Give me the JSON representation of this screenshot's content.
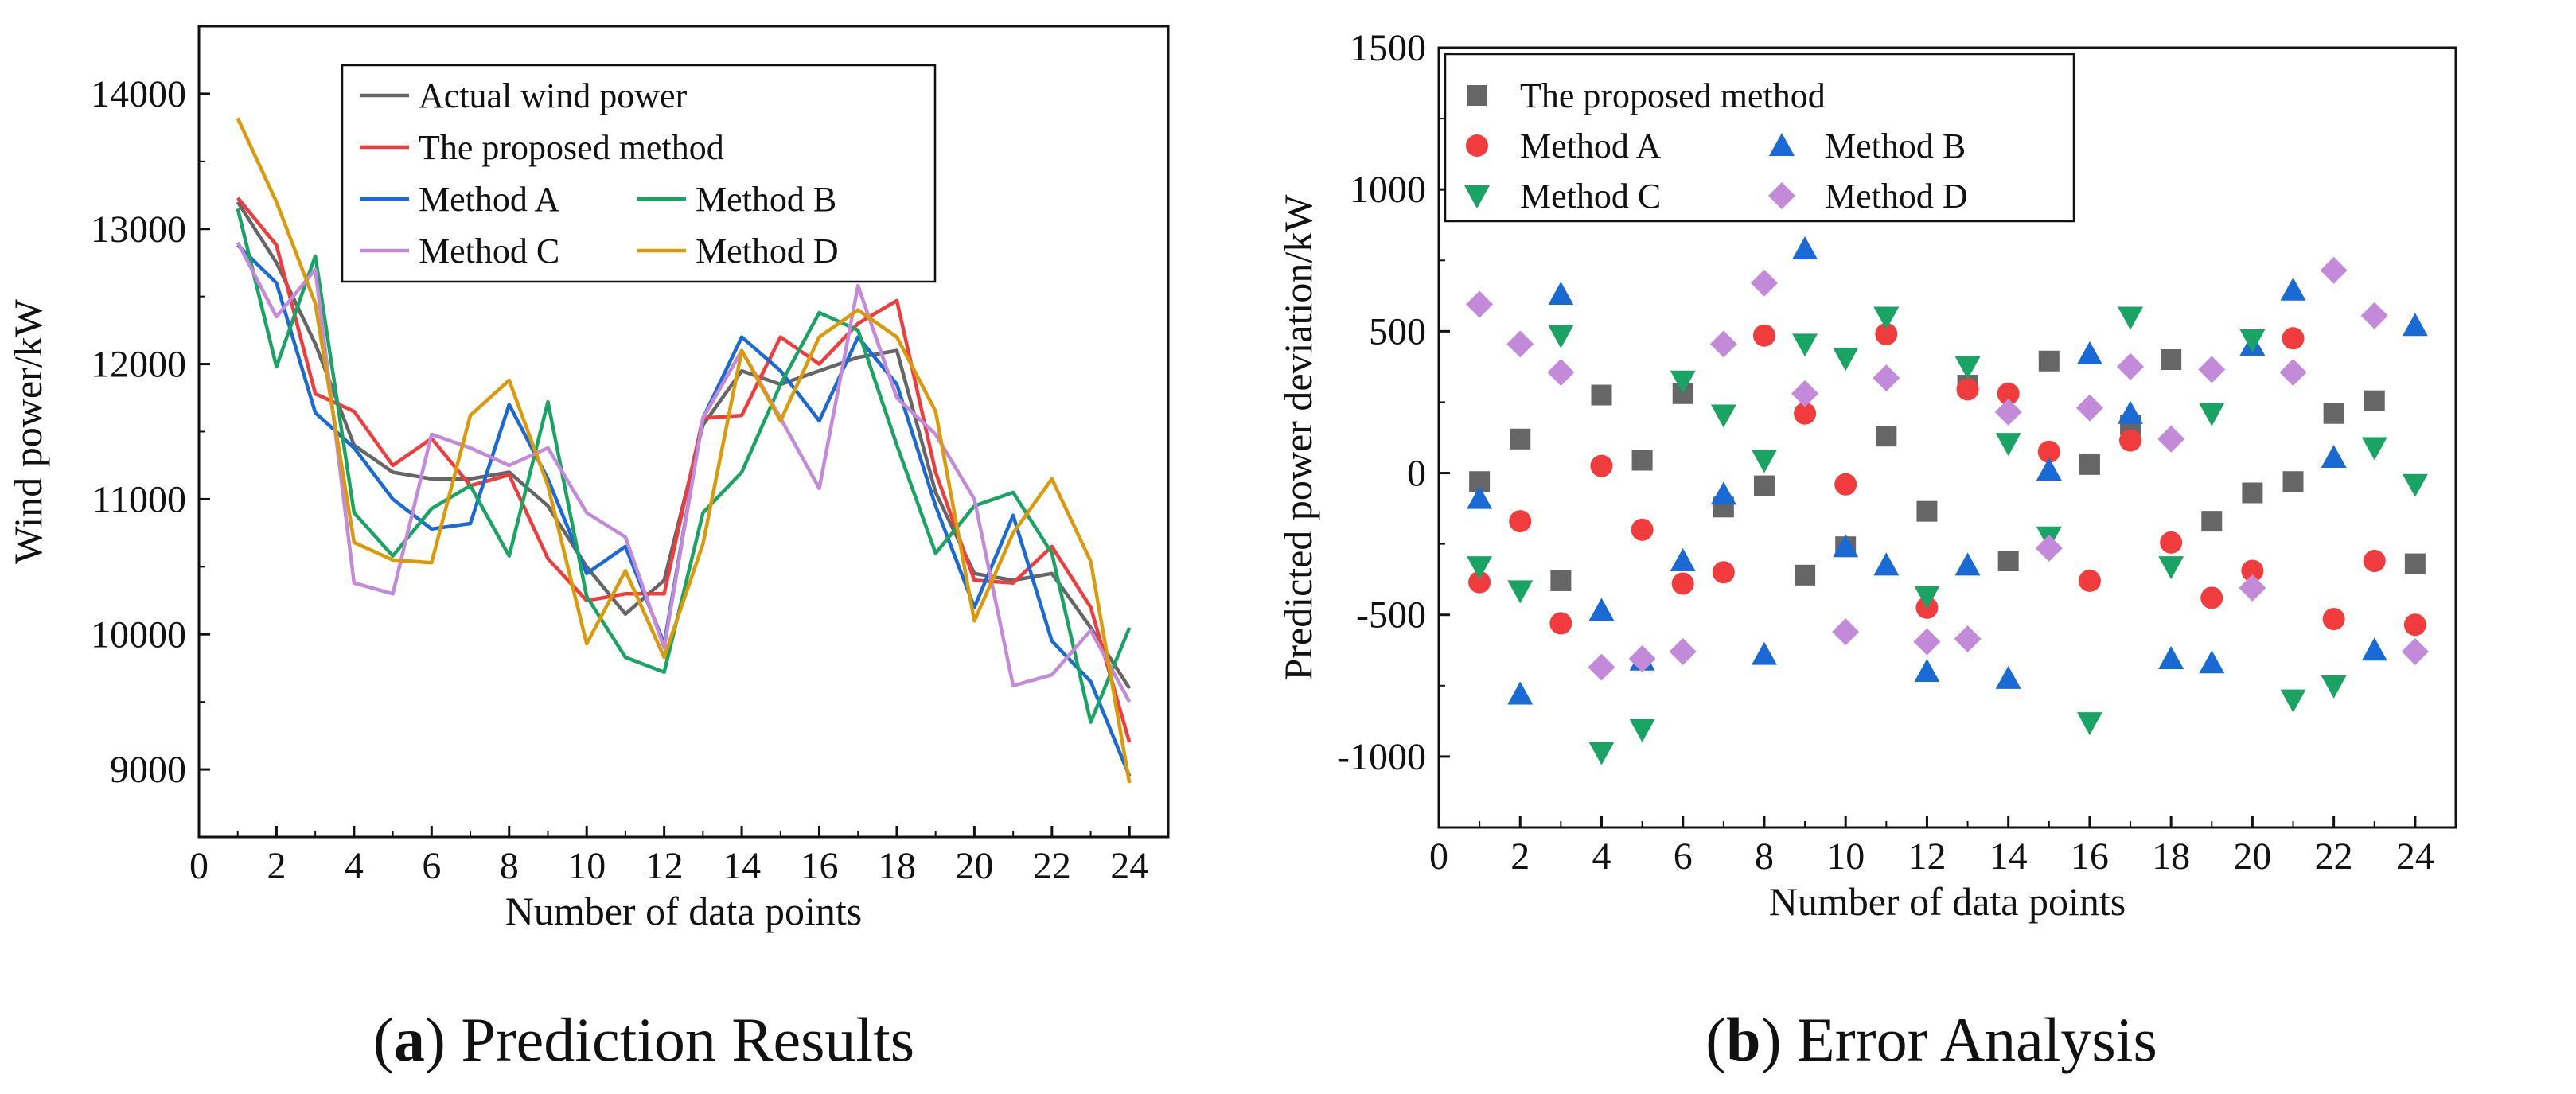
{
  "chart_data": [
    {
      "type": "line",
      "xlabel": "Number of data points",
      "ylabel": "Wind power/kW",
      "xlim": [
        0,
        25
      ],
      "ylim": [
        8500,
        14500
      ],
      "xticks": [
        0,
        2,
        4,
        6,
        8,
        10,
        12,
        14,
        16,
        18,
        20,
        22,
        24
      ],
      "yticks": [
        9000,
        10000,
        11000,
        12000,
        13000,
        14000
      ],
      "xtick_labels": [
        "0",
        "2",
        "4",
        "6",
        "8",
        "10",
        "12",
        "14",
        "16",
        "18",
        "20",
        "22",
        "24"
      ],
      "ytick_labels": [
        "9000",
        "10000",
        "11000",
        "12000",
        "13000",
        "14000"
      ],
      "legend_position": "top-center",
      "x": [
        1,
        2,
        3,
        4,
        5,
        6,
        7,
        8,
        9,
        10,
        11,
        12,
        13,
        14,
        15,
        16,
        17,
        18,
        19,
        20,
        21,
        22,
        23,
        24
      ],
      "series": [
        {
          "name": "Actual wind power",
          "color": "#666666",
          "values": [
            13200,
            12750,
            12150,
            11400,
            11200,
            11150,
            11150,
            11200,
            10950,
            10500,
            10150,
            10400,
            11550,
            11950,
            11850,
            11950,
            12050,
            12100,
            11050,
            10450,
            10400,
            10450,
            10050,
            9600
          ]
        },
        {
          "name": "The proposed method",
          "color": "#f03c3c",
          "values": [
            13230,
            12880,
            11780,
            11650,
            11250,
            11450,
            11100,
            11180,
            10560,
            10250,
            10300,
            10300,
            11600,
            11620,
            12200,
            12000,
            12300,
            12470,
            11200,
            10400,
            10380,
            10650,
            10200,
            9200
          ]
        },
        {
          "name": "Method A",
          "color": "#1a6ad6",
          "values": [
            12880,
            12600,
            11640,
            11380,
            11000,
            10780,
            10820,
            11700,
            11150,
            10450,
            10650,
            9930,
            11600,
            12200,
            11950,
            11580,
            12200,
            11850,
            10950,
            10200,
            10880,
            9950,
            9650,
            8950
          ]
        },
        {
          "name": "Method B",
          "color": "#1aa463",
          "values": [
            13150,
            11980,
            12800,
            10900,
            10580,
            10930,
            11100,
            10580,
            11720,
            10280,
            9830,
            9720,
            10900,
            11200,
            11850,
            12380,
            12250,
            11400,
            10600,
            10950,
            11050,
            10600,
            9350,
            10050
          ]
        },
        {
          "name": "Method C",
          "color": "#c38ad9",
          "values": [
            12900,
            12350,
            12700,
            10380,
            10300,
            11480,
            11380,
            11250,
            11380,
            10900,
            10720,
            9900,
            11600,
            12100,
            11600,
            11080,
            12580,
            11750,
            11480,
            11000,
            9620,
            9700,
            10030,
            9500
          ]
        },
        {
          "name": "Method D",
          "color": "#da9a0a",
          "values": [
            13820,
            13200,
            12450,
            10680,
            10550,
            10530,
            11620,
            11880,
            11100,
            9930,
            10470,
            9830,
            10670,
            12100,
            11580,
            12200,
            12400,
            12200,
            11650,
            10100,
            10750,
            11150,
            10540,
            8900
          ]
        }
      ]
    },
    {
      "type": "scatter",
      "xlabel": "Number of data points",
      "ylabel": "Predicted power deviation/kW",
      "xlim": [
        0,
        25
      ],
      "ylim": [
        -1250,
        1500
      ],
      "xticks": [
        0,
        2,
        4,
        6,
        8,
        10,
        12,
        14,
        16,
        18,
        20,
        22,
        24
      ],
      "yticks": [
        -1000,
        -500,
        0,
        500,
        1000,
        1500
      ],
      "xtick_labels": [
        "0",
        "2",
        "4",
        "6",
        "8",
        "10",
        "12",
        "14",
        "16",
        "18",
        "20",
        "22",
        "24"
      ],
      "ytick_labels": [
        "-1000",
        "-500",
        "0",
        "500",
        "1000",
        "1500"
      ],
      "legend_position": "top-left",
      "x": [
        1,
        2,
        3,
        4,
        5,
        6,
        7,
        8,
        9,
        10,
        11,
        12,
        13,
        14,
        15,
        16,
        17,
        18,
        19,
        20,
        21,
        22,
        23,
        24
      ],
      "series": [
        {
          "name": "The proposed method",
          "color": "#666666",
          "marker": "square",
          "values": [
            -30,
            120,
            -380,
            275,
            45,
            280,
            -120,
            -45,
            -360,
            -260,
            130,
            -135,
            310,
            -310,
            395,
            30,
            170,
            400,
            -170,
            -70,
            -30,
            210,
            255,
            -320
          ]
        },
        {
          "name": "Method A",
          "color": "#f03c3c",
          "marker": "circle",
          "values": [
            -385,
            -170,
            -530,
            25,
            -200,
            -390,
            -350,
            485,
            210,
            -40,
            490,
            -475,
            295,
            280,
            75,
            -380,
            115,
            -245,
            -440,
            -345,
            475,
            -515,
            -310,
            -535
          ]
        },
        {
          "name": "Method B",
          "color": "#1a6ad6",
          "marker": "triangle-up",
          "values": [
            -90,
            -780,
            630,
            -485,
            -660,
            -310,
            -75,
            -640,
            790,
            -260,
            -325,
            -700,
            -325,
            -725,
            10,
            420,
            210,
            -655,
            -670,
            450,
            645,
            55,
            -625,
            520
          ]
        },
        {
          "name": "Method C",
          "color": "#1aa463",
          "marker": "triangle-down",
          "values": [
            -330,
            -415,
            485,
            -985,
            -905,
            325,
            205,
            45,
            455,
            405,
            550,
            -435,
            375,
            105,
            -225,
            -880,
            550,
            -330,
            210,
            470,
            -800,
            -750,
            90,
            -40
          ]
        },
        {
          "name": "Method D",
          "color": "#c38ad9",
          "marker": "diamond",
          "values": [
            595,
            455,
            355,
            -685,
            -655,
            -630,
            455,
            670,
            280,
            -560,
            335,
            -595,
            -585,
            215,
            -265,
            230,
            375,
            120,
            365,
            -405,
            355,
            715,
            555,
            -630
          ]
        }
      ]
    }
  ],
  "captions": [
    {
      "letter": "a",
      "text": " Prediction Results"
    },
    {
      "letter": "b",
      "text": " Error Analysis"
    }
  ]
}
